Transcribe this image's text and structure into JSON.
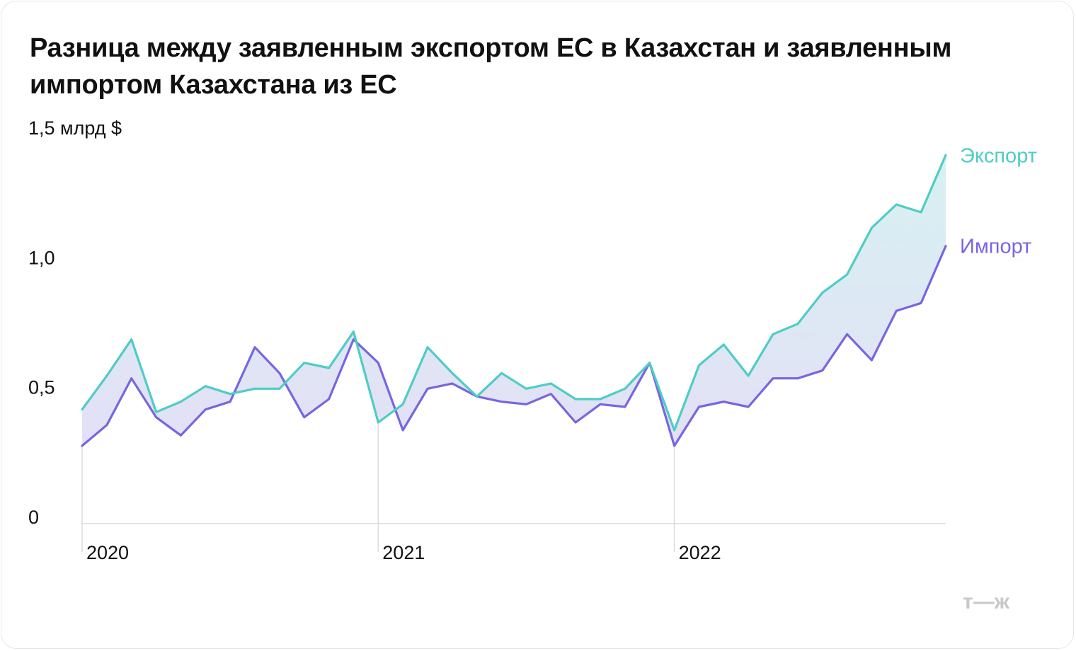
{
  "title": "Разница между заявленным экспортом ЕС в Казахстан и заявленным импортом Казахстана из ЕС",
  "colors": {
    "export": "#4ecdc4",
    "import": "#7766e0",
    "fill_top": "#d7f1f2",
    "fill_bottom": "#e3e0f6",
    "axis": "#dcdcdc",
    "logo": "#c8c8c8"
  },
  "logo_text": "т—ж",
  "chart_data": {
    "type": "line",
    "y_unit": "млрд $",
    "ylim": [
      0,
      1.5
    ],
    "y_ticks": [
      {
        "value": 0,
        "label": "0"
      },
      {
        "value": 0.5,
        "label": "0,5"
      },
      {
        "value": 1.0,
        "label": "1,0"
      },
      {
        "value": 1.5,
        "label": "1,5 млрд $"
      }
    ],
    "x": [
      "2020-01",
      "2020-02",
      "2020-03",
      "2020-04",
      "2020-05",
      "2020-06",
      "2020-07",
      "2020-08",
      "2020-09",
      "2020-10",
      "2020-11",
      "2020-12",
      "2021-01",
      "2021-02",
      "2021-03",
      "2021-04",
      "2021-05",
      "2021-06",
      "2021-07",
      "2021-08",
      "2021-09",
      "2021-10",
      "2021-11",
      "2021-12",
      "2022-01",
      "2022-02",
      "2022-03",
      "2022-04",
      "2022-05",
      "2022-06",
      "2022-07",
      "2022-08",
      "2022-09",
      "2022-10",
      "2022-11",
      "2022-12"
    ],
    "x_tick_labels": [
      {
        "at": "2020-01",
        "label": "2020"
      },
      {
        "at": "2021-01",
        "label": "2021"
      },
      {
        "at": "2022-01",
        "label": "2022"
      }
    ],
    "series": [
      {
        "name": "Экспорт",
        "key": "export",
        "values": [
          0.44,
          0.57,
          0.71,
          0.43,
          0.47,
          0.53,
          0.5,
          0.52,
          0.52,
          0.62,
          0.6,
          0.74,
          0.39,
          0.46,
          0.68,
          0.58,
          0.49,
          0.58,
          0.52,
          0.54,
          0.48,
          0.48,
          0.52,
          0.62,
          0.36,
          0.61,
          0.69,
          0.57,
          0.73,
          0.77,
          0.89,
          0.96,
          1.14,
          1.23,
          1.2,
          1.42
        ]
      },
      {
        "name": "Импорт",
        "key": "import",
        "values": [
          0.3,
          0.38,
          0.56,
          0.41,
          0.34,
          0.44,
          0.47,
          0.68,
          0.58,
          0.41,
          0.48,
          0.71,
          0.62,
          0.36,
          0.52,
          0.54,
          0.49,
          0.47,
          0.46,
          0.5,
          0.39,
          0.46,
          0.45,
          0.62,
          0.3,
          0.45,
          0.47,
          0.45,
          0.56,
          0.56,
          0.59,
          0.73,
          0.63,
          0.82,
          0.85,
          1.07
        ]
      }
    ]
  }
}
